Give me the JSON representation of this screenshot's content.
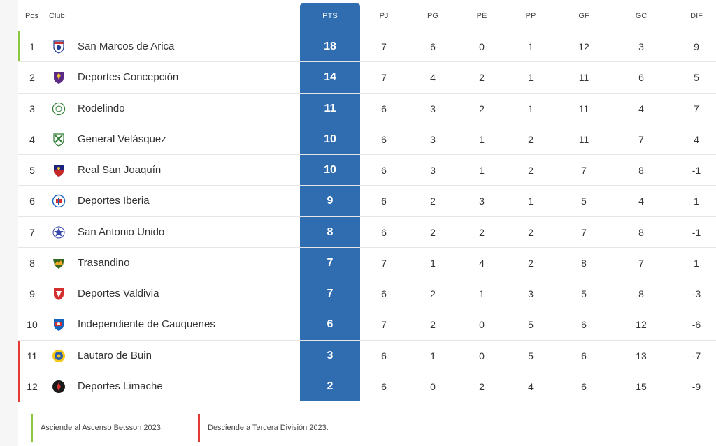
{
  "colors": {
    "promotion": "#8dc63f",
    "relegation": "#e53935",
    "pts_column": "#2f6db0"
  },
  "headers": {
    "pos": "Pos",
    "club": "Club",
    "pts": "PTS",
    "pj": "PJ",
    "pg": "PG",
    "pe": "PE",
    "pp": "PP",
    "gf": "GF",
    "gc": "GC",
    "dif": "DIF"
  },
  "rows": [
    {
      "pos": "1",
      "club": "San Marcos de Arica",
      "pts": "18",
      "pj": "7",
      "pg": "6",
      "pe": "0",
      "pp": "1",
      "gf": "12",
      "gc": "3",
      "dif": "9",
      "zone": "promotion",
      "crest": "san-marcos-crest"
    },
    {
      "pos": "2",
      "club": "Deportes Concepción",
      "pts": "14",
      "pj": "7",
      "pg": "4",
      "pe": "2",
      "pp": "1",
      "gf": "11",
      "gc": "6",
      "dif": "5",
      "zone": "none",
      "crest": "concepcion-crest"
    },
    {
      "pos": "3",
      "club": "Rodelindo",
      "pts": "11",
      "pj": "6",
      "pg": "3",
      "pe": "2",
      "pp": "1",
      "gf": "11",
      "gc": "4",
      "dif": "7",
      "zone": "none",
      "crest": "rodelindo-crest"
    },
    {
      "pos": "4",
      "club": "General Velásquez",
      "pts": "10",
      "pj": "6",
      "pg": "3",
      "pe": "1",
      "pp": "2",
      "gf": "11",
      "gc": "7",
      "dif": "4",
      "zone": "none",
      "crest": "general-velasquez-crest"
    },
    {
      "pos": "5",
      "club": "Real San Joaquín",
      "pts": "10",
      "pj": "6",
      "pg": "3",
      "pe": "1",
      "pp": "2",
      "gf": "7",
      "gc": "8",
      "dif": "-1",
      "zone": "none",
      "crest": "real-san-joaquin-crest"
    },
    {
      "pos": "6",
      "club": "Deportes Iberia",
      "pts": "9",
      "pj": "6",
      "pg": "2",
      "pe": "3",
      "pp": "1",
      "gf": "5",
      "gc": "4",
      "dif": "1",
      "zone": "none",
      "crest": "iberia-crest"
    },
    {
      "pos": "7",
      "club": "San Antonio Unido",
      "pts": "8",
      "pj": "6",
      "pg": "2",
      "pe": "2",
      "pp": "2",
      "gf": "7",
      "gc": "8",
      "dif": "-1",
      "zone": "none",
      "crest": "san-antonio-crest"
    },
    {
      "pos": "8",
      "club": "Trasandino",
      "pts": "7",
      "pj": "7",
      "pg": "1",
      "pe": "4",
      "pp": "2",
      "gf": "8",
      "gc": "7",
      "dif": "1",
      "zone": "none",
      "crest": "trasandino-crest"
    },
    {
      "pos": "9",
      "club": "Deportes Valdivia",
      "pts": "7",
      "pj": "6",
      "pg": "2",
      "pe": "1",
      "pp": "3",
      "gf": "5",
      "gc": "8",
      "dif": "-3",
      "zone": "none",
      "crest": "valdivia-crest"
    },
    {
      "pos": "10",
      "club": "Independiente de Cauquenes",
      "pts": "6",
      "pj": "7",
      "pg": "2",
      "pe": "0",
      "pp": "5",
      "gf": "6",
      "gc": "12",
      "dif": "-6",
      "zone": "none",
      "crest": "cauquenes-crest"
    },
    {
      "pos": "11",
      "club": "Lautaro de Buin",
      "pts": "3",
      "pj": "6",
      "pg": "1",
      "pe": "0",
      "pp": "5",
      "gf": "6",
      "gc": "13",
      "dif": "-7",
      "zone": "relegation",
      "crest": "lautaro-crest"
    },
    {
      "pos": "12",
      "club": "Deportes Limache",
      "pts": "2",
      "pj": "6",
      "pg": "0",
      "pe": "2",
      "pp": "4",
      "gf": "6",
      "gc": "15",
      "dif": "-9",
      "zone": "relegation",
      "crest": "limache-crest"
    }
  ],
  "legend": {
    "promotion_text": "Asciende al Ascenso Betsson 2023.",
    "relegation_text": "Desciende a Tercera División 2023."
  }
}
